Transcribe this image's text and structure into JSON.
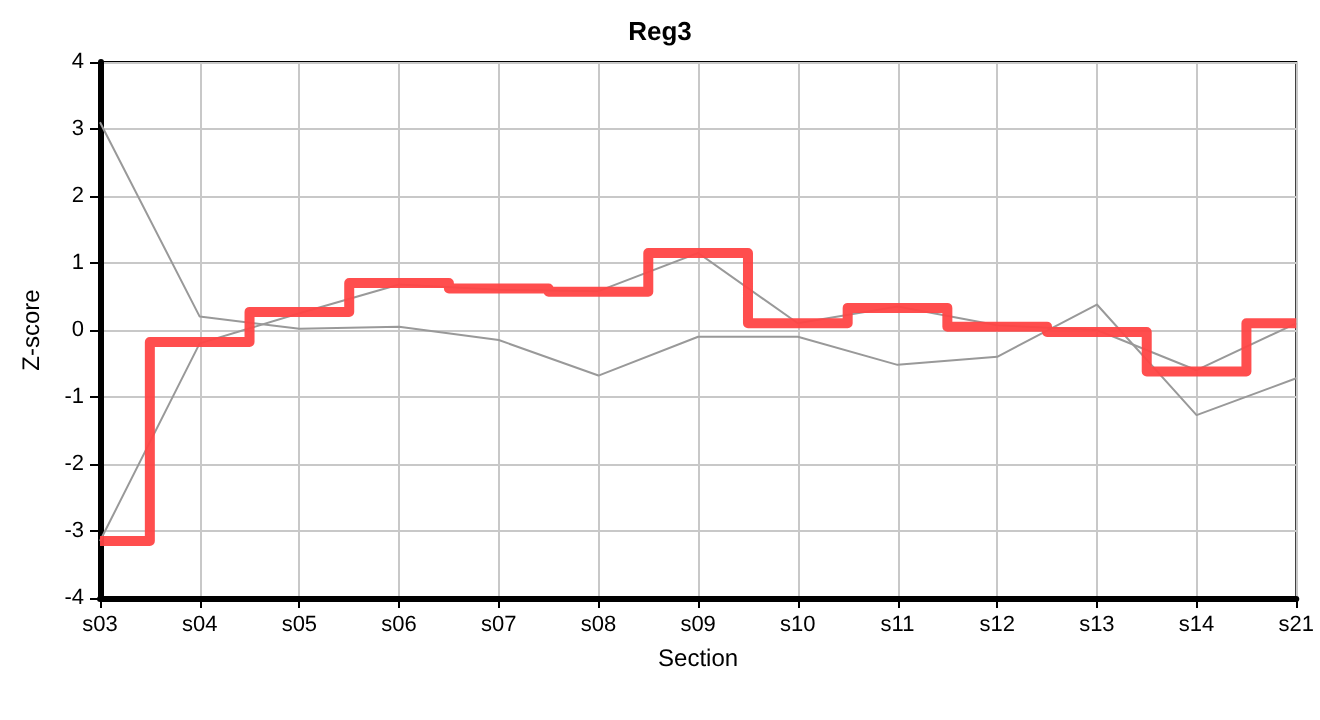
{
  "chart_data": {
    "type": "line",
    "title": "Reg3",
    "xlabel": "Section",
    "ylabel": "Z-score",
    "categories": [
      "s03",
      "s04",
      "s05",
      "s06",
      "s07",
      "s08",
      "s09",
      "s10",
      "s11",
      "s12",
      "s13",
      "s14",
      "s21"
    ],
    "ylim": [
      -4,
      4
    ],
    "yticks": [
      -4,
      -3,
      -2,
      -1,
      0,
      1,
      2,
      3,
      4
    ],
    "grid": true,
    "marker": "none",
    "series": [
      {
        "color": "#999999",
        "values": [
          3.1,
          0.2,
          0.02,
          0.05,
          -0.15,
          -0.68,
          -0.1,
          -0.1,
          -0.52,
          -0.4,
          0.38,
          -1.27,
          -0.72
        ]
      },
      {
        "color": "#999999",
        "values": [
          -3.15,
          -0.2,
          0.25,
          0.68,
          0.6,
          0.58,
          1.15,
          0.1,
          0.35,
          0.07,
          0.0,
          -0.6,
          0.1
        ]
      },
      {
        "type": "step",
        "color": "#ff4444",
        "values": [
          -3.15,
          -0.18,
          0.27,
          0.7,
          0.62,
          0.57,
          1.15,
          0.1,
          0.33,
          0.05,
          -0.03,
          -0.62,
          0.1
        ]
      }
    ]
  }
}
